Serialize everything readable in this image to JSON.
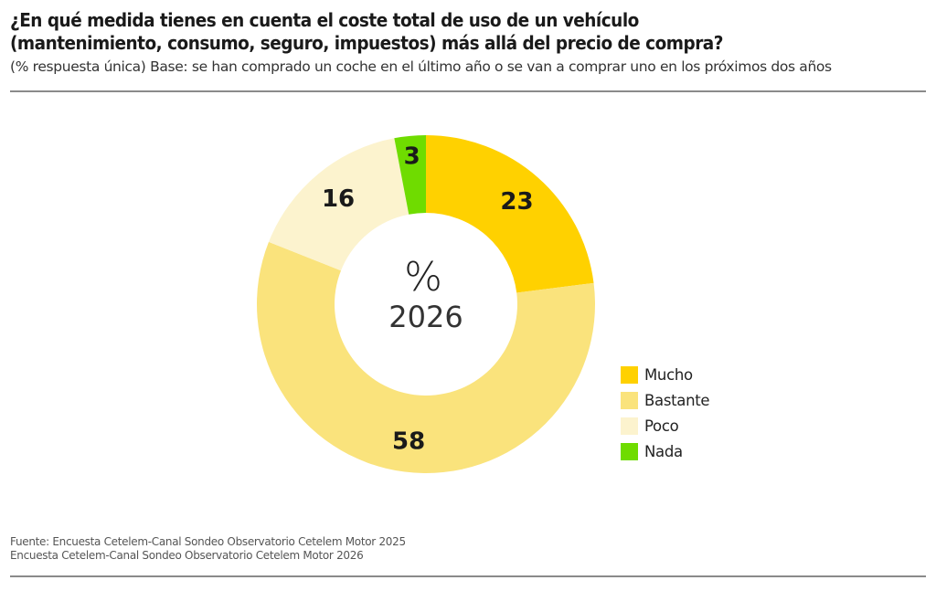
{
  "chart_data": {
    "type": "pie",
    "variant": "donut",
    "title": "¿En qué medida tienes en cuenta el coste total de uso de un vehículo (mantenimiento, consumo, seguro, impuestos) más allá del precio de compra?",
    "title_lines": [
      "¿En qué medida tienes en cuenta el coste total de uso de un vehículo",
      "(mantenimiento, consumo, seguro, impuestos) más allá del precio de compra?"
    ],
    "subtitle": "(% respuesta única) Base: se han comprado un coche en el último año o se van a comprar uno en los próximos dos años",
    "center_label": {
      "symbol": "%",
      "year": "2026"
    },
    "unit": "%",
    "start_angle": "top",
    "direction": "clockwise",
    "slices": [
      {
        "label": "Mucho",
        "value": 23,
        "color": "#FFD100"
      },
      {
        "label": "Bastante",
        "value": 58,
        "color": "#FAE37C"
      },
      {
        "label": "Poco",
        "value": 16,
        "color": "#FCF3CE"
      },
      {
        "label": "Nada",
        "value": 3,
        "color": "#6FDC00"
      }
    ],
    "legend_position": "right"
  },
  "source": {
    "lines": [
      "Fuente: Encuesta Cetelem-Canal Sondeo Observatorio Cetelem Motor 2025",
      "Encuesta Cetelem-Canal Sondeo Observatorio Cetelem Motor 2026"
    ]
  }
}
